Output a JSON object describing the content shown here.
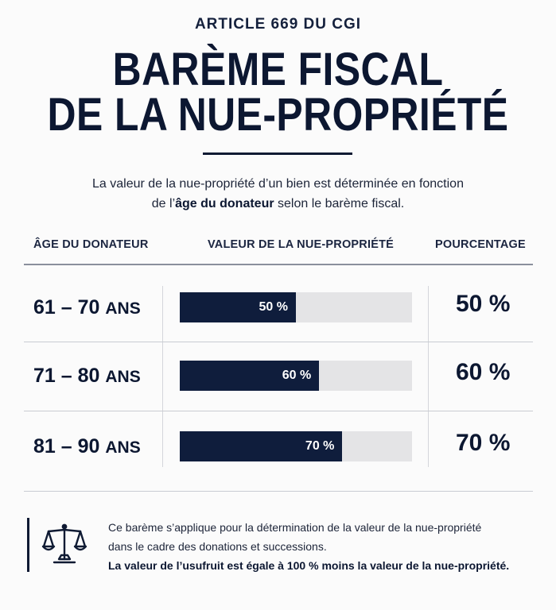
{
  "header": {
    "kicker": "ARTICLE 669 DU CGI",
    "title_line1": "BARÈME FISCAL",
    "title_line2": "DE LA NUE-PROPRIÉTÉ"
  },
  "intro": {
    "line1": "La valeur de la nue-propriété d’un bien est déterminée en fonction",
    "line2_before": "de l’",
    "line2_bold": "âge du donateur",
    "line2_after": " selon le barème fiscal."
  },
  "table": {
    "columns": [
      "ÂGE DU DONATEUR",
      "VALEUR DE LA NUE-PROPRIÉTÉ",
      "POURCENTAGE"
    ],
    "rows": [
      {
        "age_range": "61 – 70",
        "age_unit": "ANS",
        "bar_label": "50 %",
        "percentage": "50 %",
        "value": 50
      },
      {
        "age_range": "71 – 80",
        "age_unit": "ANS",
        "bar_label": "60 %",
        "percentage": "60 %",
        "value": 60
      },
      {
        "age_range": "81 – 90",
        "age_unit": "ANS",
        "bar_label": "70 %",
        "percentage": "70 %",
        "value": 70
      }
    ]
  },
  "note": {
    "icon": "scale-icon",
    "line1": "Ce barème s’applique pour la détermination de la valeur de la nue-propriété",
    "line2": "dans le cadre des donations et successions.",
    "line3": "La valeur de l’usufruit est égale à 100 % moins la valeur de la nue-propriété."
  },
  "colors": {
    "navy": "#0f1d3c",
    "track": "#e4e4e6"
  }
}
